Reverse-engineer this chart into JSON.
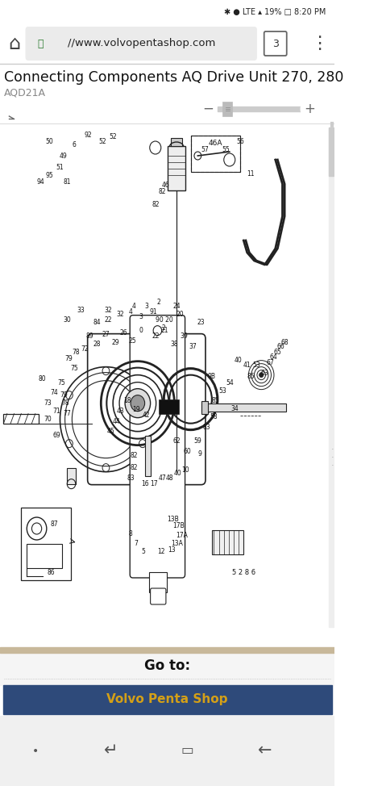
{
  "bg_color": "#ffffff",
  "status_bar_bg": "#ffffff",
  "status_bar_text": "∗ ● LTE ▴ 19% □ 8:20 PM",
  "url_bar_bg": "#ebebeb",
  "url_text": "//www.volvopentashop.com",
  "nav_icons_color": "#444444",
  "title_text": "Connecting Components AQ Drive Unit 270, 280",
  "subtitle_text": "AQD21A",
  "title_color": "#111111",
  "subtitle_color": "#888888",
  "slider_bg": "#cccccc",
  "slider_handle_color": "#bbbbbb",
  "content_bg": "#ffffff",
  "goto_text": "Go to:",
  "goto_bg": "#f5f5f5",
  "btn_bg": "#2e4a7a",
  "btn_text": "Volvo Penta Shop",
  "btn_text_color": "#d4a017",
  "bottom_nav_bg": "#f0f0f0",
  "tan_bar_color": "#c8b89a",
  "line_color": "#333333",
  "diagram_line": "#222222"
}
